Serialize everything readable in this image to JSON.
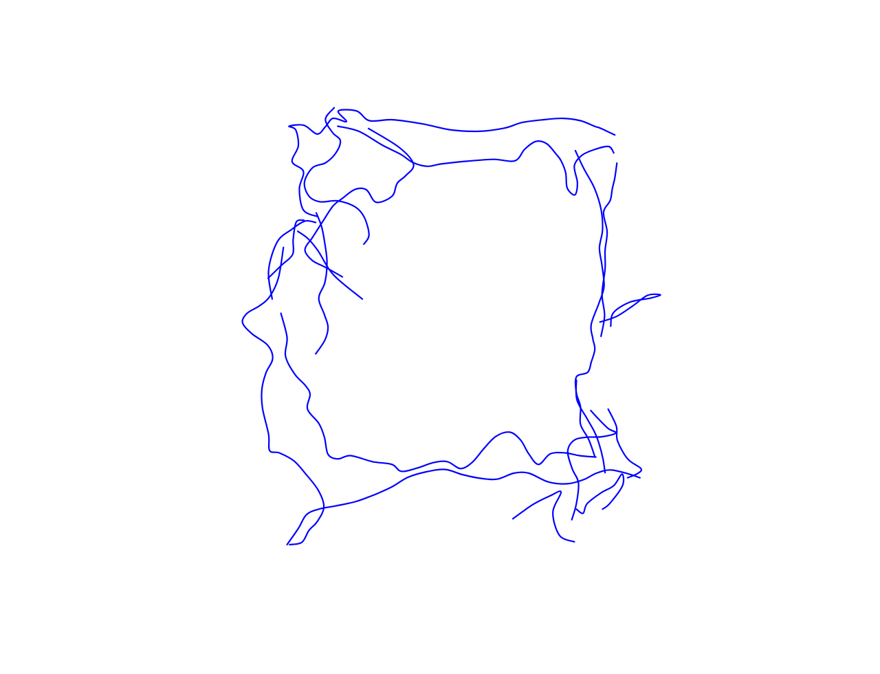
{
  "chart_data": {
    "type": "line",
    "line_color": "#0000ff",
    "axes_visible": false,
    "grid": false,
    "xlim": [
      0,
      100
    ],
    "ylim": [
      0,
      100
    ],
    "series": [
      {
        "segments": [
          [
            [
              12.2,
              42.5
            ],
            [
              11.5,
              36.3
            ],
            [
              13.2,
              30.1
            ],
            [
              16.0,
              27.4
            ],
            [
              18.6,
              25.6
            ],
            [
              20.7,
              25.9
            ]
          ],
          [
            [
              21.0,
              24.6
            ],
            [
              18.3,
              23.2
            ],
            [
              17.5,
              18.6
            ],
            [
              18.3,
              14.8
            ],
            [
              16.1,
              12.7
            ],
            [
              17.3,
              9.3
            ],
            [
              16.8,
              5.8
            ],
            [
              15.5,
              5.0
            ],
            [
              18.4,
              4.8
            ],
            [
              21.0,
              6.7
            ],
            [
              22.6,
              5.1
            ],
            [
              24.1,
              3.3
            ],
            [
              26.7,
              4.0
            ],
            [
              25.1,
              1.7
            ],
            [
              28.7,
              1.7
            ],
            [
              31.2,
              3.8
            ],
            [
              35.7,
              3.6
            ],
            [
              41.6,
              4.5
            ],
            [
              47.1,
              5.8
            ],
            [
              52.7,
              6.1
            ],
            [
              57.6,
              5.4
            ],
            [
              61.0,
              4.2
            ],
            [
              65.1,
              3.6
            ],
            [
              69.0,
              3.3
            ],
            [
              72.4,
              3.8
            ],
            [
              75.1,
              5.0
            ],
            [
              76.4,
              5.5
            ],
            [
              79.1,
              6.9
            ]
          ],
          [
            [
              24.3,
              1.0
            ],
            [
              22.6,
              3.5
            ],
            [
              24.0,
              6.4
            ],
            [
              25.5,
              8.1
            ],
            [
              24.7,
              10.7
            ],
            [
              22.7,
              12.9
            ],
            [
              20.1,
              14.0
            ],
            [
              18.5,
              17.2
            ],
            [
              19.4,
              20.2
            ],
            [
              21.6,
              21.4
            ],
            [
              25.0,
              21.2
            ],
            [
              28.4,
              22.5
            ],
            [
              30.2,
              24.8
            ],
            [
              31.1,
              28.6
            ],
            [
              30.1,
              30.6
            ]
          ],
          [
            [
              25.0,
              5.0
            ],
            [
              29.1,
              6.1
            ],
            [
              33.7,
              9.1
            ],
            [
              37.3,
              11.1
            ],
            [
              39.7,
              12.9
            ],
            [
              42.5,
              13.7
            ],
            [
              45.2,
              13.2
            ],
            [
              50.2,
              12.6
            ],
            [
              55.4,
              12.2
            ],
            [
              59.6,
              12.5
            ],
            [
              61.5,
              10.0
            ],
            [
              63.7,
              8.3
            ],
            [
              65.8,
              8.8
            ],
            [
              67.6,
              11.0
            ],
            [
              68.6,
              12.5
            ],
            [
              69.5,
              15.1
            ],
            [
              69.8,
              18.4
            ],
            [
              71.3,
              19.9
            ],
            [
              71.8,
              17.3
            ],
            [
              71.2,
              13.6
            ],
            [
              72.7,
              11.3
            ],
            [
              75.3,
              10.0
            ],
            [
              77.9,
              9.4
            ],
            [
              78.9,
              10.8
            ]
          ],
          [
            [
              31.0,
              5.5
            ],
            [
              37.0,
              9.6
            ],
            [
              39.8,
              13.3
            ],
            [
              38.2,
              15.8
            ],
            [
              36.6,
              17.4
            ],
            [
              35.6,
              20.2
            ],
            [
              32.5,
              21.5
            ],
            [
              30.6,
              18.8
            ],
            [
              28.4,
              18.7
            ],
            [
              26.1,
              20.5
            ],
            [
              24.1,
              22.3
            ],
            [
              22.0,
              25.8
            ],
            [
              20.1,
              29.1
            ],
            [
              18.6,
              31.8
            ],
            [
              20.0,
              34.1
            ],
            [
              22.2,
              35.4
            ],
            [
              23.7,
              36.3
            ],
            [
              25.9,
              37.7
            ]
          ],
          [
            [
              18.4,
              25.4
            ],
            [
              16.9,
              25.8
            ],
            [
              16.3,
              29.6
            ],
            [
              16.2,
              32.8
            ],
            [
              14.0,
              35.2
            ],
            [
              11.4,
              38.0
            ]
          ],
          [
            [
              20.8,
              23.8
            ],
            [
              21.8,
              26.6
            ],
            [
              22.4,
              29.9
            ],
            [
              22.9,
              34.4
            ],
            [
              22.5,
              38.9
            ],
            [
              21.3,
              42.3
            ],
            [
              22.4,
              45.9
            ],
            [
              23.1,
              48.6
            ],
            [
              22.5,
              51.4
            ],
            [
              20.7,
              54.4
            ]
          ],
          [
            [
              29.8,
              42.5
            ],
            [
              24.2,
              37.3
            ],
            [
              21.2,
              32.1
            ],
            [
              19.2,
              29.4
            ],
            [
              17.2,
              27.8
            ]
          ],
          [
            [
              14.4,
              31.3
            ],
            [
              13.4,
              38.0
            ],
            [
              11.7,
              42.0
            ],
            [
              9.7,
              44.0
            ],
            [
              7.3,
              45.6
            ],
            [
              6.4,
              47.6
            ],
            [
              8.2,
              50.0
            ],
            [
              11.3,
              52.5
            ],
            [
              12.3,
              55.4
            ],
            [
              11.0,
              58.5
            ],
            [
              10.2,
              62.0
            ],
            [
              10.3,
              66.1
            ],
            [
              11.5,
              71.9
            ],
            [
              11.7,
              75.4
            ],
            [
              13.6,
              75.9
            ],
            [
              16.4,
              77.6
            ],
            [
              18.7,
              80.4
            ],
            [
              21.2,
              84.0
            ],
            [
              22.3,
              87.6
            ],
            [
              21.0,
              90.8
            ],
            [
              19.4,
              92.7
            ],
            [
              18.0,
              95.3
            ],
            [
              15.6,
              95.8
            ]
          ],
          [
            [
              13.9,
              45.6
            ],
            [
              15.1,
              50.8
            ],
            [
              14.8,
              54.9
            ],
            [
              16.6,
              58.8
            ],
            [
              18.7,
              61.3
            ],
            [
              19.6,
              63.2
            ],
            [
              19.1,
              66.4
            ],
            [
              21.3,
              69.5
            ],
            [
              22.4,
              72.5
            ],
            [
              23.1,
              76.2
            ],
            [
              25.0,
              77.2
            ],
            [
              27.5,
              76.5
            ],
            [
              31.8,
              77.8
            ],
            [
              35.6,
              78.4
            ],
            [
              37.4,
              79.9
            ],
            [
              40.5,
              79.2
            ],
            [
              43.7,
              78.0
            ],
            [
              46.4,
              77.8
            ],
            [
              49.0,
              79.3
            ],
            [
              51.3,
              77.9
            ],
            [
              53.5,
              75.0
            ],
            [
              55.9,
              72.3
            ],
            [
              58.6,
              71.4
            ],
            [
              60.7,
              73.1
            ],
            [
              62.3,
              76.1
            ],
            [
              64.2,
              78.4
            ],
            [
              66.5,
              76.1
            ],
            [
              69.4,
              75.9
            ],
            [
              72.2,
              76.5
            ],
            [
              75.4,
              76.8
            ]
          ],
          [
            [
              15.1,
              95.8
            ],
            [
              17.3,
              92.3
            ],
            [
              18.9,
              89.3
            ],
            [
              21.3,
              88.1
            ],
            [
              24.6,
              87.4
            ],
            [
              28.4,
              86.5
            ],
            [
              31.2,
              85.4
            ],
            [
              33.2,
              84.5
            ],
            [
              35.7,
              83.2
            ],
            [
              38.7,
              81.2
            ],
            [
              42.3,
              80.0
            ],
            [
              46.0,
              79.5
            ],
            [
              49.3,
              80.6
            ],
            [
              52.8,
              81.4
            ],
            [
              56.1,
              81.6
            ],
            [
              59.4,
              80.3
            ],
            [
              62.3,
              80.3
            ],
            [
              66.1,
              82.2
            ],
            [
              69.8,
              82.6
            ],
            [
              73.0,
              81.7
            ],
            [
              75.5,
              80.3
            ],
            [
              78.2,
              79.6
            ],
            [
              81.6,
              80.4
            ],
            [
              84.0,
              81.3
            ]
          ],
          [
            [
              59.2,
              90.2
            ],
            [
              63.1,
              87.1
            ],
            [
              66.5,
              85.2
            ],
            [
              68.6,
              84.4
            ],
            [
              67.0,
              88.8
            ],
            [
              68.3,
              93.8
            ],
            [
              71.2,
              95.2
            ]
          ],
          [
            [
              75.2,
              76.7
            ],
            [
              74.0,
              73.0
            ],
            [
              72.4,
              69.7
            ],
            [
              72.4,
              65.9
            ],
            [
              71.6,
              62.9
            ],
            [
              71.6,
              59.4
            ],
            [
              73.8,
              58.4
            ],
            [
              74.5,
              56.2
            ],
            [
              75.2,
              53.4
            ],
            [
              74.8,
              51.1
            ],
            [
              74.5,
              48.0
            ],
            [
              76.0,
              43.4
            ],
            [
              77.0,
              39.8
            ],
            [
              76.6,
              35.3
            ],
            [
              76.1,
              31.4
            ],
            [
              76.7,
              27.5
            ],
            [
              76.4,
              23.0
            ],
            [
              75.1,
              18.4
            ],
            [
              73.0,
              14.1
            ],
            [
              71.4,
              10.3
            ]
          ],
          [
            [
              76.4,
              50.6
            ],
            [
              77.1,
              46.1
            ],
            [
              76.6,
              41.4
            ],
            [
              77.2,
              36.0
            ],
            [
              77.2,
              32.0
            ],
            [
              77.6,
              27.9
            ],
            [
              76.9,
              23.7
            ],
            [
              78.2,
              21.1
            ],
            [
              78.6,
              18.6
            ],
            [
              79.1,
              16.2
            ],
            [
              79.5,
              13.0
            ]
          ],
          [
            [
              76.2,
              47.5
            ],
            [
              79.4,
              46.3
            ],
            [
              82.6,
              44.0
            ],
            [
              85.5,
              41.7
            ],
            [
              88.0,
              41.6
            ],
            [
              86.1,
              42.3
            ],
            [
              82.0,
              43.2
            ],
            [
              78.8,
              45.5
            ],
            [
              78.3,
              48.4
            ]
          ],
          [
            [
              71.6,
              60.1
            ],
            [
              71.7,
              64.4
            ],
            [
              73.7,
              68.5
            ],
            [
              75.2,
              71.5
            ],
            [
              76.1,
              74.2
            ],
            [
              76.8,
              77.3
            ],
            [
              77.2,
              80.2
            ]
          ],
          [
            [
              74.4,
              66.7
            ],
            [
              75.8,
              68.4
            ],
            [
              77.8,
              70.6
            ],
            [
              79.3,
              71.6
            ],
            [
              76.5,
              72.4
            ],
            [
              73.5,
              72.5
            ],
            [
              71.1,
              73.2
            ],
            [
              69.9,
              75.6
            ],
            [
              70.8,
              79.4
            ],
            [
              72.0,
              82.4
            ],
            [
              71.6,
              86.9
            ],
            [
              70.7,
              90.4
            ]
          ],
          [
            [
              81.6,
              81.3
            ],
            [
              83.5,
              80.4
            ],
            [
              84.2,
              79.3
            ],
            [
              81.6,
              77.2
            ],
            [
              79.6,
              73.2
            ],
            [
              79.4,
              70.1
            ],
            [
              77.8,
              66.4
            ]
          ],
          [
            [
              71.6,
              88.1
            ],
            [
              72.9,
              89.0
            ],
            [
              73.7,
              86.9
            ],
            [
              76.5,
              84.5
            ],
            [
              78.9,
              83.0
            ],
            [
              80.5,
              80.5
            ],
            [
              80.6,
              83.0
            ],
            [
              78.1,
              86.9
            ],
            [
              76.7,
              88.1
            ]
          ]
        ]
      }
    ]
  }
}
